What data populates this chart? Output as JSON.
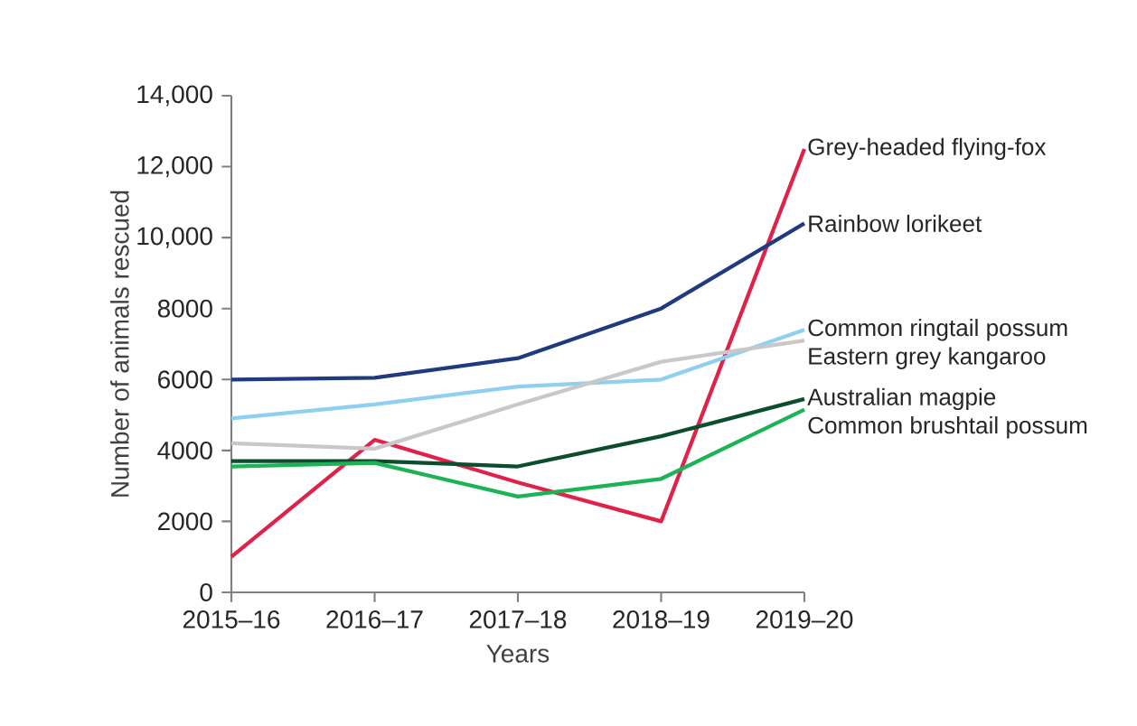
{
  "chart_data": {
    "type": "line",
    "xlabel": "Years",
    "ylabel": "Number of animals rescued",
    "categories": [
      "2015–16",
      "2016–17",
      "2017–18",
      "2018–19",
      "2019–20"
    ],
    "ylim": [
      0,
      14000
    ],
    "yticks": [
      0,
      2000,
      4000,
      6000,
      8000,
      {
        "value": 10000,
        "label": "10,000"
      },
      {
        "value": 12000,
        "label": "12,000"
      },
      {
        "value": 14000,
        "label": "14,000"
      }
    ],
    "grid": false,
    "marker": "none",
    "line_style": "solid",
    "series": [
      {
        "name": "Grey-headed flying-fox",
        "color": "#e0224a",
        "values": [
          1000,
          4300,
          3100,
          2000,
          12500
        ]
      },
      {
        "name": "Rainbow lorikeet",
        "color": "#1f3a7e",
        "values": [
          6000,
          6050,
          6600,
          8000,
          10400
        ]
      },
      {
        "name": "Common ringtail possum",
        "color": "#8fcff0",
        "values": [
          4900,
          5300,
          5800,
          6000,
          7400
        ]
      },
      {
        "name": "Eastern grey kangaroo",
        "color": "#c8c8c8",
        "values": [
          4200,
          4050,
          5300,
          6500,
          7100
        ]
      },
      {
        "name": "Australian magpie",
        "color": "#0b4d2c",
        "values": [
          3700,
          3700,
          3550,
          4400,
          5450
        ]
      },
      {
        "name": "Common brushtail possum",
        "color": "#1db254",
        "values": [
          3550,
          3650,
          2700,
          3200,
          5150
        ]
      }
    ]
  }
}
